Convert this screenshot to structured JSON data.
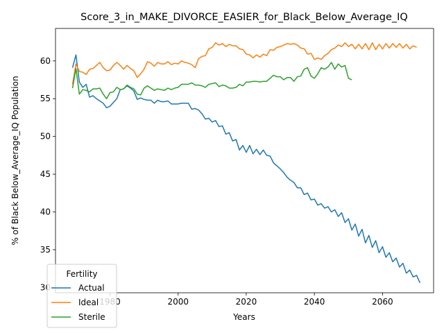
{
  "chart_data": {
    "type": "line",
    "title": "Score_3_in_MAKE_DIVORCE_EASIER_for_Black_Below_Average_IQ",
    "xlabel": "Years",
    "ylabel": "% of Black Below_Average_IQ Population",
    "xlim": [
      1964,
      2075
    ],
    "ylim": [
      29.3,
      64.3
    ],
    "xticks": [
      1980,
      2000,
      2020,
      2040,
      2060
    ],
    "yticks": [
      30,
      35,
      40,
      45,
      50,
      55,
      60
    ],
    "grid": false,
    "legend": {
      "title": "Fertility",
      "placement": "bottom-left"
    },
    "series": [
      {
        "name": "Actual",
        "color": "#1f77b4",
        "points": [
          [
            1969,
            59.1
          ],
          [
            1970,
            60.8
          ],
          [
            1971,
            57.2
          ],
          [
            1972,
            56.5
          ],
          [
            1973,
            56.9
          ],
          [
            1974,
            55.2
          ],
          [
            1975,
            55.4
          ],
          [
            1976,
            55.0
          ],
          [
            1977,
            54.7
          ],
          [
            1978,
            54.4
          ],
          [
            1979,
            53.8
          ],
          [
            1980,
            54.0
          ],
          [
            1981,
            54.5
          ],
          [
            1982,
            55.0
          ],
          [
            1983,
            56.2
          ],
          [
            1984,
            56.3
          ],
          [
            1985,
            56.7
          ],
          [
            1986,
            56.4
          ],
          [
            1987,
            56.0
          ],
          [
            1988,
            54.9
          ],
          [
            1989,
            55.1
          ],
          [
            1990,
            54.9
          ],
          [
            1991,
            54.8
          ],
          [
            1992,
            54.8
          ],
          [
            1993,
            54.4
          ],
          [
            1994,
            54.8
          ],
          [
            1995,
            54.6
          ],
          [
            1996,
            54.6
          ],
          [
            1997,
            54.7
          ],
          [
            1998,
            54.3
          ],
          [
            1999,
            54.3
          ],
          [
            2000,
            54.3
          ],
          [
            2001,
            54.4
          ],
          [
            2002,
            54.4
          ],
          [
            2003,
            54.4
          ],
          [
            2004,
            53.6
          ],
          [
            2005,
            53.7
          ],
          [
            2006,
            53.5
          ],
          [
            2007,
            53.0
          ],
          [
            2008,
            52.3
          ],
          [
            2009,
            52.4
          ],
          [
            2010,
            51.9
          ],
          [
            2011,
            52.1
          ],
          [
            2012,
            51.3
          ],
          [
            2013,
            51.4
          ],
          [
            2014,
            50.3
          ],
          [
            2015,
            50.5
          ],
          [
            2016,
            49.4
          ],
          [
            2017,
            49.6
          ],
          [
            2018,
            48.2
          ],
          [
            2019,
            48.8
          ],
          [
            2020,
            47.9
          ],
          [
            2021,
            48.8
          ],
          [
            2022,
            47.7
          ],
          [
            2023,
            48.3
          ],
          [
            2024,
            47.6
          ],
          [
            2025,
            48.2
          ],
          [
            2026,
            47.5
          ],
          [
            2027,
            47.4
          ],
          [
            2028,
            46.5
          ],
          [
            2029,
            46.1
          ],
          [
            2030,
            45.7
          ],
          [
            2031,
            45.2
          ],
          [
            2032,
            44.6
          ],
          [
            2033,
            44.2
          ],
          [
            2034,
            43.9
          ],
          [
            2035,
            43.2
          ],
          [
            2036,
            43.2
          ],
          [
            2037,
            42.3
          ],
          [
            2038,
            42.5
          ],
          [
            2039,
            41.6
          ],
          [
            2040,
            41.7
          ],
          [
            2041,
            40.9
          ],
          [
            2042,
            41.1
          ],
          [
            2043,
            40.5
          ],
          [
            2044,
            40.7
          ],
          [
            2045,
            40.0
          ],
          [
            2046,
            40.3
          ],
          [
            2047,
            39.4
          ],
          [
            2048,
            39.9
          ],
          [
            2049,
            38.6
          ],
          [
            2050,
            39.1
          ],
          [
            2051,
            37.6
          ],
          [
            2052,
            38.4
          ],
          [
            2053,
            36.8
          ],
          [
            2054,
            37.7
          ],
          [
            2055,
            35.9
          ],
          [
            2056,
            36.9
          ],
          [
            2057,
            35.3
          ],
          [
            2058,
            36.2
          ],
          [
            2059,
            34.6
          ],
          [
            2060,
            35.4
          ],
          [
            2061,
            34.0
          ],
          [
            2062,
            34.6
          ],
          [
            2063,
            33.4
          ],
          [
            2064,
            33.9
          ],
          [
            2065,
            32.7
          ],
          [
            2066,
            33.2
          ],
          [
            2067,
            31.9
          ],
          [
            2068,
            32.3
          ],
          [
            2069,
            31.4
          ],
          [
            2070,
            31.6
          ],
          [
            2071,
            30.6
          ]
        ]
      },
      {
        "name": "Ideal",
        "color": "#ff7f0e",
        "points": [
          [
            1969,
            56.9
          ],
          [
            1970,
            59.6
          ],
          [
            1971,
            58.6
          ],
          [
            1972,
            58.5
          ],
          [
            1973,
            58.2
          ],
          [
            1974,
            58.9
          ],
          [
            1975,
            59.0
          ],
          [
            1976,
            59.4
          ],
          [
            1977,
            59.8
          ],
          [
            1978,
            59.1
          ],
          [
            1979,
            58.7
          ],
          [
            1980,
            58.8
          ],
          [
            1981,
            59.4
          ],
          [
            1982,
            59.8
          ],
          [
            1983,
            59.4
          ],
          [
            1984,
            58.9
          ],
          [
            1985,
            59.4
          ],
          [
            1986,
            59.0
          ],
          [
            1987,
            58.7
          ],
          [
            1988,
            57.8
          ],
          [
            1989,
            58.3
          ],
          [
            1990,
            58.9
          ],
          [
            1991,
            59.9
          ],
          [
            1992,
            59.7
          ],
          [
            1993,
            59.3
          ],
          [
            1994,
            59.8
          ],
          [
            1995,
            59.6
          ],
          [
            1996,
            59.6
          ],
          [
            1997,
            59.9
          ],
          [
            1998,
            59.5
          ],
          [
            1999,
            59.7
          ],
          [
            2000,
            59.6
          ],
          [
            2001,
            60.0
          ],
          [
            2002,
            59.8
          ],
          [
            2003,
            59.7
          ],
          [
            2004,
            59.5
          ],
          [
            2005,
            59.1
          ],
          [
            2006,
            60.3
          ],
          [
            2007,
            60.6
          ],
          [
            2008,
            60.7
          ],
          [
            2009,
            61.6
          ],
          [
            2010,
            61.8
          ],
          [
            2011,
            62.4
          ],
          [
            2012,
            62.1
          ],
          [
            2013,
            62.3
          ],
          [
            2014,
            61.9
          ],
          [
            2015,
            62.2
          ],
          [
            2016,
            62.0
          ],
          [
            2017,
            62.0
          ],
          [
            2018,
            61.6
          ],
          [
            2019,
            61.5
          ],
          [
            2020,
            60.9
          ],
          [
            2021,
            60.8
          ],
          [
            2022,
            60.4
          ],
          [
            2023,
            60.8
          ],
          [
            2024,
            60.5
          ],
          [
            2025,
            60.9
          ],
          [
            2026,
            60.7
          ],
          [
            2027,
            61.5
          ],
          [
            2028,
            61.4
          ],
          [
            2029,
            61.8
          ],
          [
            2030,
            61.9
          ],
          [
            2031,
            62.1
          ],
          [
            2032,
            62.3
          ],
          [
            2033,
            62.2
          ],
          [
            2034,
            62.3
          ],
          [
            2035,
            62.1
          ],
          [
            2036,
            61.7
          ],
          [
            2037,
            61.6
          ],
          [
            2038,
            60.9
          ],
          [
            2039,
            61.0
          ],
          [
            2040,
            60.2
          ],
          [
            2041,
            60.4
          ],
          [
            2042,
            60.2
          ],
          [
            2043,
            60.7
          ],
          [
            2044,
            61.0
          ],
          [
            2045,
            61.5
          ],
          [
            2046,
            61.7
          ],
          [
            2047,
            62.1
          ],
          [
            2048,
            61.9
          ],
          [
            2049,
            62.4
          ],
          [
            2050,
            61.9
          ],
          [
            2051,
            62.2
          ],
          [
            2052,
            61.6
          ],
          [
            2053,
            62.2
          ],
          [
            2054,
            61.6
          ],
          [
            2055,
            62.3
          ],
          [
            2056,
            61.5
          ],
          [
            2057,
            62.4
          ],
          [
            2058,
            61.5
          ],
          [
            2059,
            62.2
          ],
          [
            2060,
            61.6
          ],
          [
            2061,
            62.3
          ],
          [
            2062,
            61.7
          ],
          [
            2063,
            62.3
          ],
          [
            2064,
            61.8
          ],
          [
            2065,
            62.3
          ],
          [
            2066,
            61.7
          ],
          [
            2067,
            62.2
          ],
          [
            2068,
            61.6
          ],
          [
            2069,
            62.0
          ],
          [
            2070,
            61.8
          ]
        ]
      },
      {
        "name": "Sterile",
        "color": "#2ca02c",
        "points": [
          [
            1969,
            56.4
          ],
          [
            1970,
            59.0
          ],
          [
            1971,
            55.6
          ],
          [
            1972,
            56.2
          ],
          [
            1973,
            56.1
          ],
          [
            1974,
            55.9
          ],
          [
            1975,
            56.3
          ],
          [
            1976,
            56.3
          ],
          [
            1977,
            56.4
          ],
          [
            1978,
            55.6
          ],
          [
            1979,
            55.0
          ],
          [
            1980,
            55.8
          ],
          [
            1981,
            55.9
          ],
          [
            1982,
            56.5
          ],
          [
            1983,
            56.2
          ],
          [
            1984,
            56.3
          ],
          [
            1985,
            56.8
          ],
          [
            1986,
            56.5
          ],
          [
            1987,
            56.3
          ],
          [
            1988,
            55.6
          ],
          [
            1989,
            55.5
          ],
          [
            1990,
            56.4
          ],
          [
            1991,
            56.7
          ],
          [
            1992,
            56.4
          ],
          [
            1993,
            56.1
          ],
          [
            1994,
            56.3
          ],
          [
            1995,
            56.2
          ],
          [
            1996,
            56.1
          ],
          [
            1997,
            56.4
          ],
          [
            1998,
            56.2
          ],
          [
            1999,
            56.4
          ],
          [
            2000,
            56.5
          ],
          [
            2001,
            56.9
          ],
          [
            2002,
            56.9
          ],
          [
            2003,
            56.9
          ],
          [
            2004,
            57.1
          ],
          [
            2005,
            56.8
          ],
          [
            2006,
            56.8
          ],
          [
            2007,
            56.7
          ],
          [
            2008,
            56.5
          ],
          [
            2009,
            56.9
          ],
          [
            2010,
            57.0
          ],
          [
            2011,
            57.1
          ],
          [
            2012,
            56.6
          ],
          [
            2013,
            56.8
          ],
          [
            2014,
            56.7
          ],
          [
            2015,
            56.4
          ],
          [
            2016,
            56.4
          ],
          [
            2017,
            56.5
          ],
          [
            2018,
            56.9
          ],
          [
            2019,
            56.7
          ],
          [
            2020,
            57.2
          ],
          [
            2021,
            57.2
          ],
          [
            2022,
            57.3
          ],
          [
            2023,
            57.3
          ],
          [
            2024,
            57.2
          ],
          [
            2025,
            57.3
          ],
          [
            2026,
            57.3
          ],
          [
            2027,
            57.7
          ],
          [
            2028,
            58.1
          ],
          [
            2029,
            57.9
          ],
          [
            2030,
            57.9
          ],
          [
            2031,
            57.5
          ],
          [
            2032,
            57.8
          ],
          [
            2033,
            57.8
          ],
          [
            2034,
            57.3
          ],
          [
            2035,
            57.9
          ],
          [
            2036,
            58.0
          ],
          [
            2037,
            58.9
          ],
          [
            2038,
            59.1
          ],
          [
            2039,
            58.0
          ],
          [
            2040,
            57.7
          ],
          [
            2041,
            58.3
          ],
          [
            2042,
            59.1
          ],
          [
            2043,
            58.9
          ],
          [
            2044,
            59.2
          ],
          [
            2045,
            59.8
          ],
          [
            2046,
            58.9
          ],
          [
            2047,
            59.6
          ],
          [
            2048,
            59.2
          ],
          [
            2049,
            59.4
          ],
          [
            2050,
            57.7
          ],
          [
            2051,
            57.5
          ]
        ]
      }
    ]
  }
}
